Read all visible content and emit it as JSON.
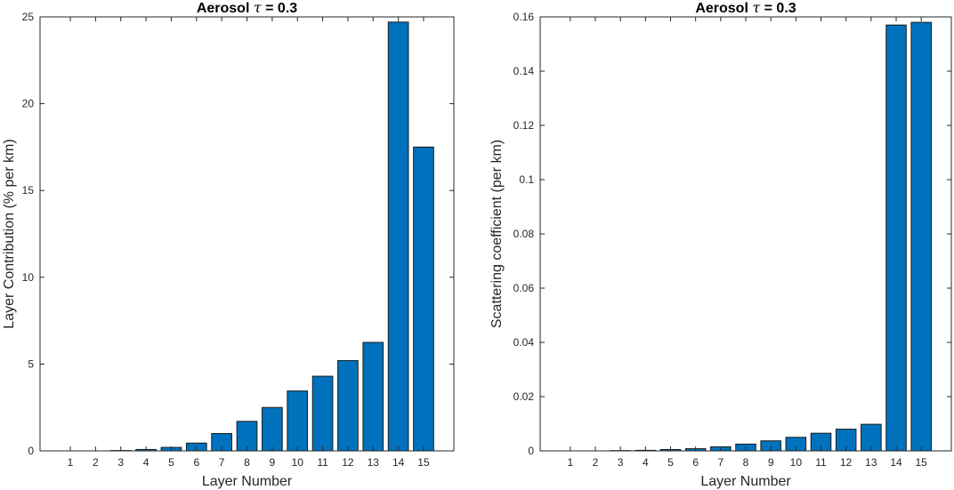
{
  "chart_data": [
    {
      "type": "bar",
      "title": "Aerosol τ = 0.3",
      "xlabel": "Layer Number",
      "ylabel": "Layer Contribution (% per km)",
      "categories": [
        "1",
        "2",
        "3",
        "4",
        "5",
        "6",
        "7",
        "8",
        "9",
        "10",
        "11",
        "12",
        "13",
        "14",
        "15"
      ],
      "values": [
        0,
        0,
        0.02,
        0.08,
        0.2,
        0.45,
        1.0,
        1.7,
        2.5,
        3.45,
        4.3,
        5.2,
        6.25,
        24.7,
        17.5
      ],
      "xlim": [
        -0.2,
        16.2
      ],
      "ylim": [
        0,
        25
      ],
      "yticks": [
        0,
        5,
        10,
        15,
        20,
        25
      ],
      "yticklabels": [
        "0",
        "5",
        "10",
        "15",
        "20",
        "25"
      ],
      "bar_color": "#0072BD"
    },
    {
      "type": "bar",
      "title": "Aerosol τ = 0.3",
      "xlabel": "Layer Number",
      "ylabel": "Scattering coefficient (per km)",
      "categories": [
        "1",
        "2",
        "3",
        "4",
        "5",
        "6",
        "7",
        "8",
        "9",
        "10",
        "11",
        "12",
        "13",
        "14",
        "15"
      ],
      "values": [
        0,
        0,
        0.0001,
        0.0002,
        0.0005,
        0.0008,
        0.0015,
        0.0025,
        0.0037,
        0.005,
        0.0065,
        0.008,
        0.0098,
        0.157,
        0.158
      ],
      "xlim": [
        -0.2,
        16.2
      ],
      "ylim": [
        0,
        0.16
      ],
      "yticks": [
        0,
        0.02,
        0.04,
        0.06,
        0.08,
        0.1,
        0.12,
        0.14,
        0.16
      ],
      "yticklabels": [
        "0",
        "0.02",
        "0.04",
        "0.06",
        "0.08",
        "0.1",
        "0.12",
        "0.14",
        "0.16"
      ],
      "bar_color": "#0072BD"
    }
  ]
}
